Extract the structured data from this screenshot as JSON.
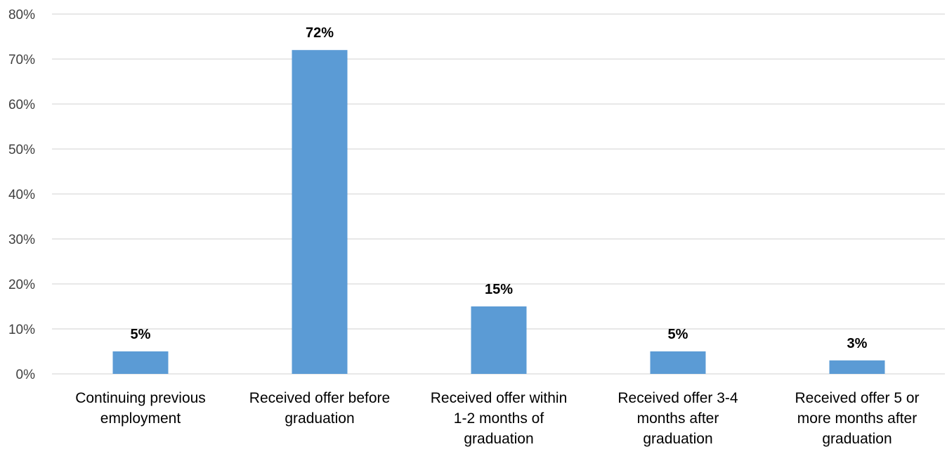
{
  "chart_data": {
    "type": "bar",
    "categories": [
      [
        "Continuing previous",
        "employment"
      ],
      [
        "Received offer before",
        "graduation"
      ],
      [
        "Received offer within",
        "1-2 months of",
        "graduation"
      ],
      [
        "Received offer 3-4",
        "months after",
        "graduation"
      ],
      [
        "Received offer 5 or",
        "more months after",
        "graduation"
      ]
    ],
    "values": [
      5,
      72,
      15,
      5,
      3
    ],
    "data_labels": [
      "5%",
      "72%",
      "15%",
      "5%",
      "3%"
    ],
    "y_ticks": [
      0,
      10,
      20,
      30,
      40,
      50,
      60,
      70,
      80
    ],
    "y_tick_labels": [
      "0%",
      "10%",
      "20%",
      "30%",
      "40%",
      "50%",
      "60%",
      "70%",
      "80%"
    ],
    "ylim": [
      0,
      80
    ],
    "grid": true,
    "legend": "none",
    "title": "",
    "xlabel": "",
    "ylabel": "",
    "colors": {
      "bar": "#5b9bd5",
      "grid": "#d9d9d9"
    }
  }
}
